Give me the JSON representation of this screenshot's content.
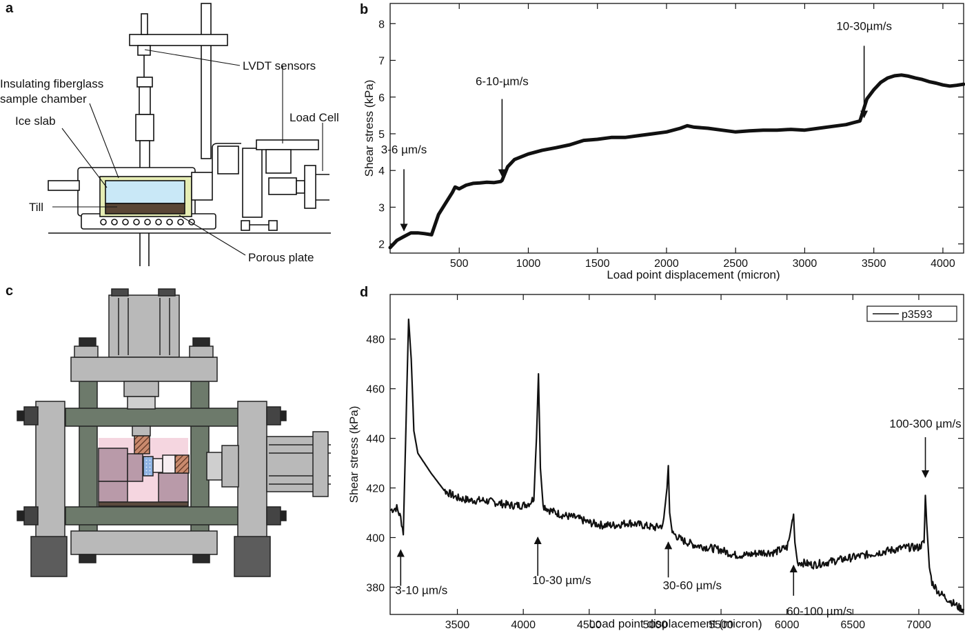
{
  "panels": {
    "a": {
      "letter": "a",
      "labels": {
        "lvdt": "LVDT sensors",
        "fiberglass_1": "Insulating fiberglass",
        "fiberglass_2": "sample chamber",
        "ice": "Ice slab",
        "till": "Till",
        "loadcell": "Load Cell",
        "porous": "Porous plate"
      }
    },
    "b": {
      "letter": "b"
    },
    "c": {
      "letter": "c"
    },
    "d": {
      "letter": "d"
    }
  },
  "colors": {
    "line": "#111111",
    "fiberglass": "#e6edb4",
    "ice": "#c9e8f7",
    "till": "#5a4636",
    "frame_gray": "#b9b9b9",
    "frame_green": "#6d7a6b",
    "dark_block": "#5c5c5c",
    "sample_pink": "#f5d6e0",
    "sample_mauve": "#b99aa9",
    "sample_blue": "#8fb3e3",
    "hatch_brown": "#8a5a44"
  },
  "chart_data": [
    {
      "panel": "b",
      "type": "line",
      "title": "",
      "xlabel": "Load point displacement (micron)",
      "ylabel": "Shear stress (kPa)",
      "xlim": [
        0,
        4150
      ],
      "ylim": [
        1.75,
        8.55
      ],
      "xticks": [
        500,
        1000,
        1500,
        2000,
        2500,
        3000,
        3500,
        4000
      ],
      "yticks": [
        2,
        3,
        4,
        5,
        6,
        7,
        8
      ],
      "grid": false,
      "series": [
        {
          "x": [
            0,
            50,
            100,
            150,
            200,
            250,
            300,
            350,
            400,
            450,
            470,
            500,
            550,
            600,
            650,
            700,
            750,
            800,
            810,
            850,
            900,
            1000,
            1100,
            1200,
            1300,
            1400,
            1500,
            1600,
            1700,
            1800,
            1900,
            2000,
            2100,
            2150,
            2200,
            2300,
            2400,
            2500,
            2600,
            2700,
            2800,
            2900,
            3000,
            3100,
            3200,
            3300,
            3350,
            3400,
            3450,
            3500,
            3550,
            3600,
            3650,
            3700,
            3750,
            3800,
            3850,
            3900,
            3950,
            4000,
            4050,
            4100,
            4150
          ],
          "y": [
            1.9,
            2.1,
            2.2,
            2.3,
            2.3,
            2.28,
            2.25,
            2.8,
            3.1,
            3.4,
            3.55,
            3.5,
            3.6,
            3.65,
            3.66,
            3.68,
            3.67,
            3.7,
            3.73,
            4.1,
            4.3,
            4.45,
            4.55,
            4.62,
            4.7,
            4.82,
            4.85,
            4.9,
            4.9,
            4.95,
            5.0,
            5.05,
            5.15,
            5.22,
            5.18,
            5.15,
            5.1,
            5.05,
            5.08,
            5.1,
            5.1,
            5.12,
            5.1,
            5.15,
            5.2,
            5.25,
            5.3,
            5.35,
            5.95,
            6.2,
            6.4,
            6.52,
            6.58,
            6.6,
            6.57,
            6.52,
            6.48,
            6.42,
            6.38,
            6.33,
            6.3,
            6.32,
            6.35
          ]
        }
      ],
      "annotations": [
        {
          "text": "3-6 µm/s",
          "x": 100,
          "y": 2.25
        },
        {
          "text": "6-10-µm/s",
          "x": 810,
          "y": 3.73
        },
        {
          "text": "10-30µm/s",
          "x": 3430,
          "y": 5.33
        }
      ]
    },
    {
      "panel": "d",
      "type": "line",
      "title": "",
      "xlabel": "Load point displacement (micron)",
      "ylabel": "Shear stress (kPa)",
      "xlim": [
        2990,
        7340
      ],
      "ylim": [
        369,
        498
      ],
      "xticks": [
        3500,
        4000,
        4500,
        5000,
        5500,
        6000,
        6500,
        7000
      ],
      "yticks": [
        380,
        400,
        420,
        440,
        460,
        480
      ],
      "grid": false,
      "legend": {
        "position": "top-right"
      },
      "series": [
        {
          "name": "p3593",
          "x": [
            2990,
            3040,
            3070,
            3090,
            3110,
            3130,
            3150,
            3170,
            3200,
            3300,
            3400,
            3500,
            3600,
            3700,
            3800,
            3900,
            4000,
            4050,
            4080,
            4100,
            4115,
            4130,
            4150,
            4200,
            4300,
            4400,
            4500,
            4600,
            4700,
            4800,
            4900,
            5000,
            5060,
            5090,
            5100,
            5110,
            5130,
            5200,
            5300,
            5400,
            5500,
            5600,
            5700,
            5800,
            5900,
            6000,
            6020,
            6040,
            6050,
            6060,
            6080,
            6100,
            6200,
            6300,
            6400,
            6500,
            6600,
            6700,
            6800,
            6900,
            7000,
            7040,
            7050,
            7060,
            7080,
            7100,
            7150,
            7200,
            7250,
            7300,
            7340
          ],
          "y": [
            411,
            412,
            408,
            402,
            445,
            488,
            472,
            443,
            434,
            426,
            419,
            416,
            415,
            415,
            414,
            413,
            413,
            414,
            416,
            440,
            466,
            428,
            413,
            411,
            409,
            408,
            406,
            405,
            405,
            406,
            405,
            404,
            405,
            420,
            429,
            410,
            402,
            399,
            397,
            396,
            395,
            393,
            393,
            394,
            394,
            396,
            400,
            407,
            409,
            398,
            390,
            390,
            389,
            390,
            391,
            392,
            393,
            394,
            395,
            396,
            396,
            398,
            417,
            406,
            388,
            382,
            378,
            376,
            374,
            372,
            371
          ]
        }
      ],
      "annotations": [
        {
          "text": "3-10 µm/s",
          "x": 3070,
          "y": 400
        },
        {
          "text": "10-30 µm/s",
          "x": 4110,
          "y": 404
        },
        {
          "text": "30-60 µm/s",
          "x": 5100,
          "y": 402
        },
        {
          "text": "60-100 µm/s",
          "x": 6050,
          "y": 391
        },
        {
          "text": "100-300 µm/s",
          "x": 7050,
          "y": 421
        }
      ]
    }
  ]
}
